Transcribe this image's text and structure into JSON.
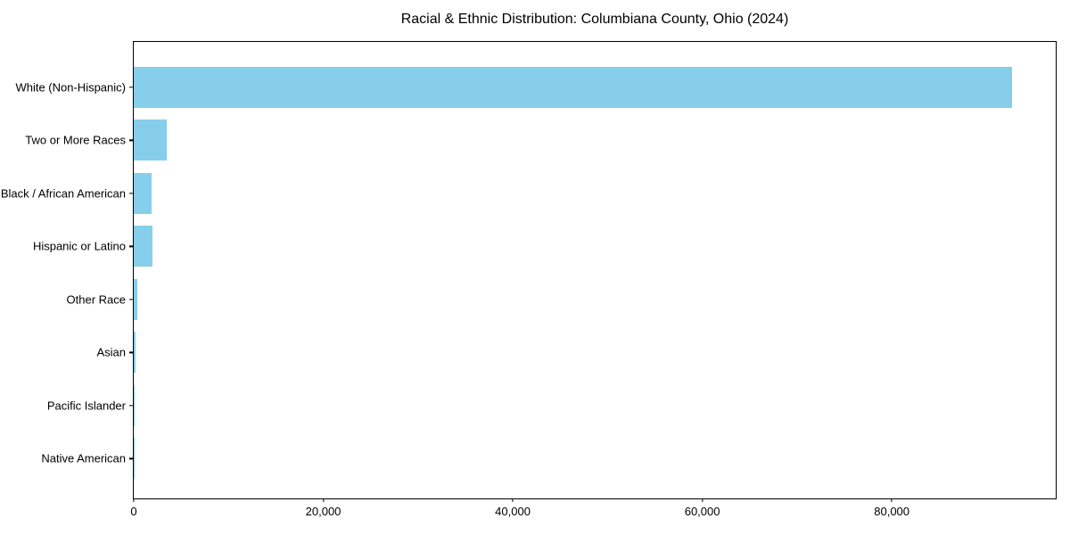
{
  "chart_data": {
    "type": "bar",
    "orientation": "horizontal",
    "title": "Racial & Ethnic Distribution: Columbiana County, Ohio (2024)",
    "xlabel": "",
    "ylabel": "",
    "categories": [
      "White (Non-Hispanic)",
      "Two or More Races",
      "Black / African American",
      "Hispanic or Latino",
      "Other Race",
      "Asian",
      "Pacific Islander",
      "Native American"
    ],
    "values": [
      92700,
      3450,
      1900,
      1970,
      380,
      200,
      30,
      20
    ],
    "xlim": [
      0,
      97300
    ],
    "xticks": [
      {
        "value": 0,
        "label": "0"
      },
      {
        "value": 20000,
        "label": "20,000"
      },
      {
        "value": 40000,
        "label": "40,000"
      },
      {
        "value": 60000,
        "label": "60,000"
      },
      {
        "value": 80000,
        "label": "80,000"
      }
    ],
    "grid": false,
    "legend": false,
    "bar_color": "#87CEEB",
    "axis_color": "#000000",
    "background_color": "#FFFFFF"
  }
}
